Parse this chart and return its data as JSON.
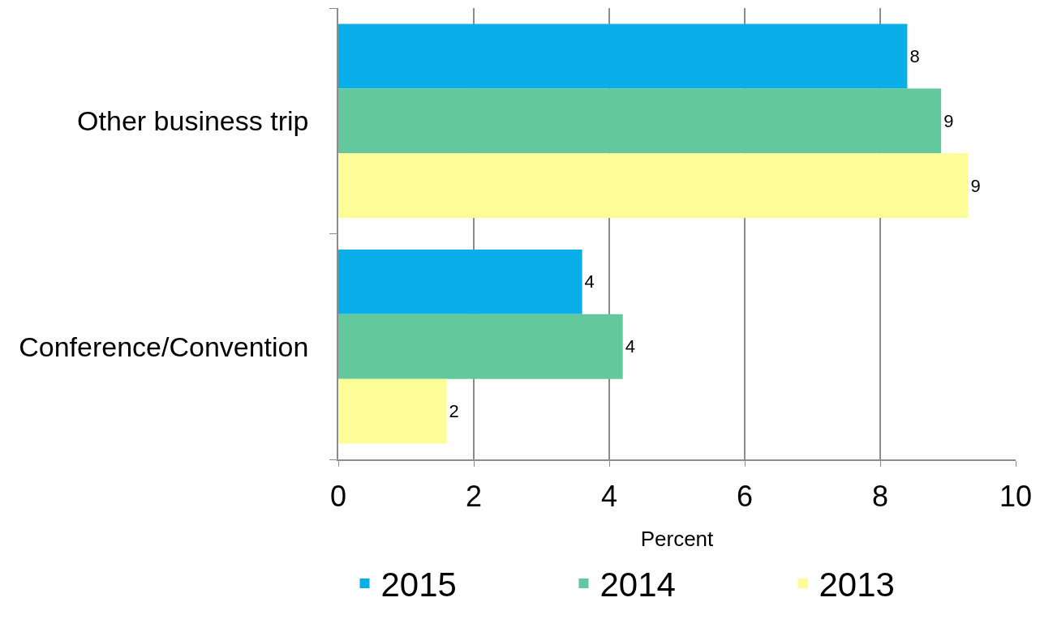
{
  "chart_data": {
    "type": "bar",
    "orientation": "horizontal",
    "categories": [
      "Other business trip",
      "Conference/Convention"
    ],
    "xlabel": "Percent",
    "xlim": [
      0,
      10
    ],
    "xticks": [
      0,
      2,
      4,
      6,
      8,
      10
    ],
    "grid": "x",
    "legend": "bottom",
    "series": [
      {
        "name": "2015",
        "color": "#0aaee9",
        "values": [
          8.4,
          3.6
        ],
        "value_labels": [
          "8",
          "4"
        ]
      },
      {
        "name": "2014",
        "color": "#63c89c",
        "values": [
          8.9,
          4.2
        ],
        "value_labels": [
          "9",
          "4"
        ]
      },
      {
        "name": "2013",
        "color": "#fdfd98",
        "values": [
          9.3,
          1.6
        ],
        "value_labels": [
          "9",
          "2"
        ]
      }
    ]
  }
}
